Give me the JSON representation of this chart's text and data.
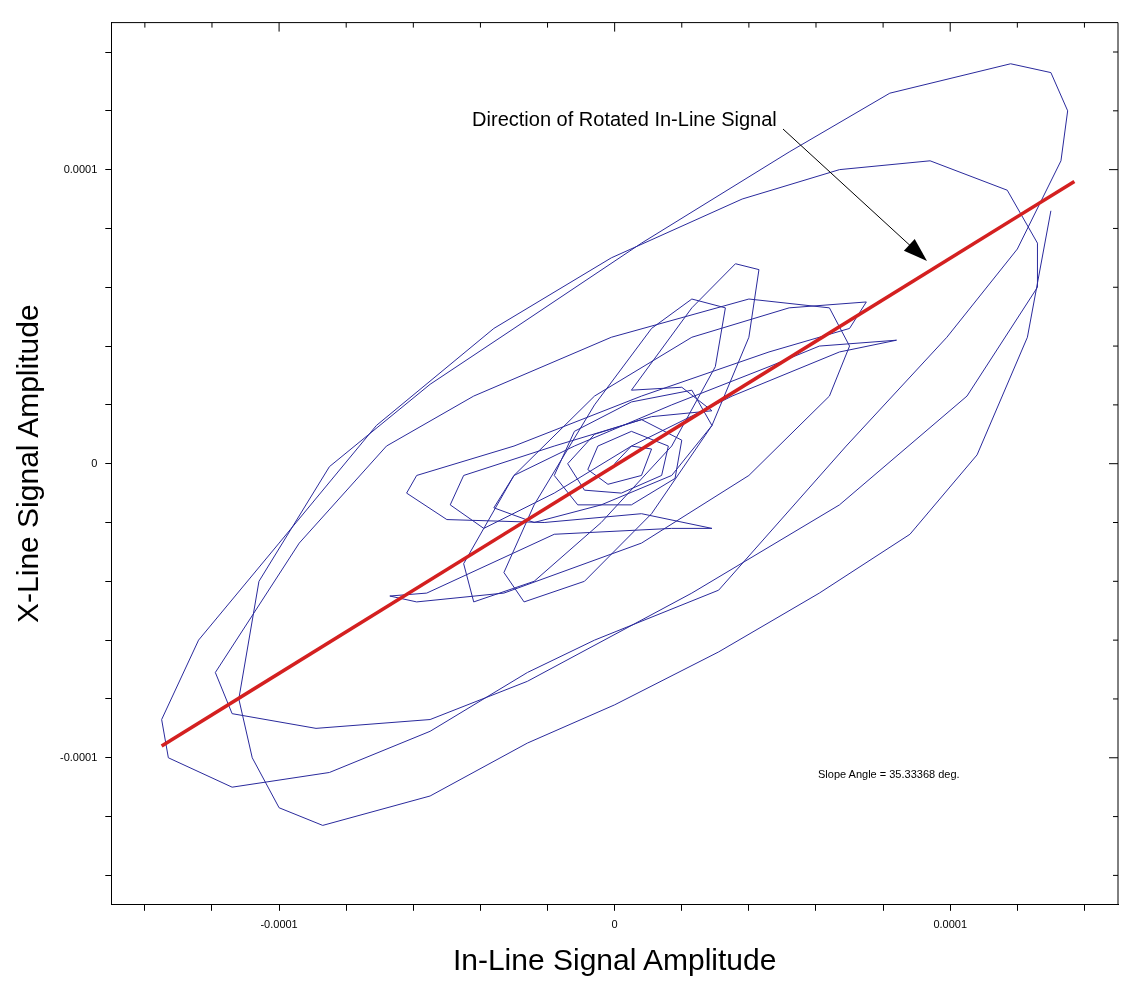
{
  "chart_data": {
    "type": "line",
    "xlabel": "In-Line Signal Amplitude",
    "ylabel": "X-Line Signal Amplitude",
    "xlim": [
      -0.00015,
      0.00015
    ],
    "ylim": [
      -0.00015,
      0.00015
    ],
    "xticks": [
      {
        "value": -0.00014,
        "label": null
      },
      {
        "value": -0.00012,
        "label": null
      },
      -0.0001,
      {
        "value": -8e-05,
        "label": null
      },
      {
        "value": -6e-05,
        "label": null
      },
      {
        "value": -4e-05,
        "label": null
      },
      {
        "value": -2e-05,
        "label": null
      },
      0,
      {
        "value": 2e-05,
        "label": null
      },
      {
        "value": 4e-05,
        "label": null
      },
      {
        "value": 6e-05,
        "label": null
      },
      {
        "value": 8e-05,
        "label": null
      },
      0.0001,
      {
        "value": 0.00012,
        "label": null
      },
      {
        "value": 0.00014,
        "label": null
      }
    ],
    "yticks": [
      {
        "value": -0.00014,
        "label": null
      },
      {
        "value": -0.00012,
        "label": null
      },
      -0.0001,
      {
        "value": -8e-05,
        "label": null
      },
      {
        "value": -6e-05,
        "label": null
      },
      {
        "value": -4e-05,
        "label": null
      },
      {
        "value": -2e-05,
        "label": null
      },
      0,
      {
        "value": 2e-05,
        "label": null
      },
      {
        "value": 4e-05,
        "label": null
      },
      {
        "value": 6e-05,
        "label": null
      },
      {
        "value": 8e-05,
        "label": null
      },
      0.0001,
      {
        "value": 0.00012,
        "label": null
      },
      {
        "value": 0.00014,
        "label": null
      }
    ],
    "grid": false,
    "marker": "none",
    "series": [
      {
        "type": "line",
        "color": "#2a2a9c",
        "x": [
          0,
          5e-06,
          1.1e-05,
          8e-06,
          -2e-06,
          -8e-06,
          -5e-06,
          5e-06,
          1.6e-05,
          1.4e-05,
          2e-06,
          -9e-06,
          -1.4e-05,
          -6e-06,
          8e-06,
          2e-05,
          1.8e-05,
          5e-06,
          -1.1e-05,
          -1.8e-05,
          -1.2e-05,
          5e-06,
          2.3e-05,
          2.9e-05,
          1.7e-05,
          -4e-06,
          -2.4e-05,
          -3.6e-05,
          -3e-05,
          -1.2e-05,
          1.7e-05,
          4.6e-05,
          6.1e-05,
          8.4e-05,
          6.7e-05,
          3.5e-05,
          5e-06,
          -1.8e-05,
          -3.9e-05,
          -4.9e-05,
          -4.5e-05,
          -1.8e-05,
          1.1e-05,
          2.9e-05,
          2e-05,
          5e-06,
          2.3e-05,
          3.6e-05,
          4.3e-05,
          4e-05,
          2.9e-05,
          1.1e-05,
          -9e-06,
          -2.7e-05,
          -3.3e-05,
          -2.4e-05,
          -6e-06,
          1.1e-05,
          2.3e-05,
          3.3e-05,
          3e-05,
          1.7e-05,
          -4e-06,
          -2.4e-05,
          -4.2e-05,
          -4.5e-05,
          -3e-05,
          -6e-06,
          2.3e-05,
          5.2e-05,
          7.5e-05,
          7e-05,
          4.6e-05,
          8e-06,
          -3e-05,
          -5.9e-05,
          -6.2e-05,
          -5e-05,
          -2.1e-05,
          8e-06,
          2.9e-05,
          1.7e-05,
          -1.8e-05,
          -5.6e-05,
          -6.7e-05,
          -5.9e-05,
          -3.3e-05,
          8e-06,
          4e-05,
          6.4e-05,
          7e-05,
          6.4e-05,
          4e-05,
          -1e-06,
          -4.2e-05,
          -6.8e-05,
          -9.4e-05,
          -0.000119,
          -0.000114,
          -8.9e-05,
          -5.5e-05,
          -2.6e-05,
          2.3e-05,
          6.7e-05,
          0.000105,
          0.000126,
          0.000126,
          0.000117,
          9.4e-05,
          6.7e-05,
          3.8e-05,
          -1e-06,
          -3.6e-05,
          -7.1e-05,
          -0.0001,
          -0.000124,
          -0.000135,
          -0.000133,
          -0.000114,
          -8.5e-05,
          -5.5e-05,
          -2.6e-05,
          -6e-06,
          3.1e-05,
          6.9e-05,
          9.9e-05,
          0.00012,
          0.000133,
          0.000135,
          0.00013,
          0.000118,
          8.2e-05,
          5.2e-05,
          8e-06,
          -3e-05,
          -5.5e-05,
          -8.5e-05,
          -0.000106,
          -0.000112,
          -0.000108,
          -0.0001,
          -8.7e-05,
          -5.5e-05,
          -2.6e-05,
          0,
          3.1e-05,
          6.1e-05,
          8.8e-05,
          0.000108,
          0.000123,
          0.00013
        ],
        "values": [
          0,
          6e-06,
          5e-06,
          -4e-06,
          -7e-06,
          -2e-06,
          6e-06,
          1.1e-05,
          6e-06,
          -4e-06,
          -1e-05,
          -9e-06,
          0,
          1e-05,
          1.5e-05,
          8e-06,
          -5e-06,
          -1.4e-05,
          -1.4e-05,
          -4e-06,
          1.1e-05,
          2.1e-05,
          2.5e-05,
          1.3e-05,
          -4e-06,
          -1.4e-05,
          -2e-05,
          -1.5e-05,
          -4e-06,
          6e-06,
          2e-05,
          3.3e-05,
          4e-05,
          4.2e-05,
          3.8e-05,
          2.3e-05,
          6e-06,
          -1e-05,
          -2.2e-05,
          -1.4e-05,
          -4e-06,
          6e-06,
          1.6e-05,
          1.8e-05,
          2.6e-05,
          2.5e-05,
          5.3e-05,
          6.8e-05,
          6.6e-05,
          4.3e-05,
          1.3e-05,
          -1.7e-05,
          -4e-05,
          -4.7e-05,
          -3.7e-05,
          -1.4e-05,
          2e-05,
          4.6e-05,
          5.6e-05,
          5.3e-05,
          3.3e-05,
          6e-06,
          -2e-05,
          -4e-05,
          -4.7e-05,
          -3.4e-05,
          -4e-06,
          2.3e-05,
          4.3e-05,
          5.3e-05,
          5.5e-05,
          4.6e-05,
          3.8e-05,
          2.3e-05,
          6e-06,
          -4e-06,
          -1e-05,
          -1.9e-05,
          -2e-05,
          -1.7e-05,
          -2.2e-05,
          -2.2e-05,
          -2.4e-05,
          -4.4e-05,
          -4.5e-05,
          -4.7e-05,
          -4.4e-05,
          -2.7e-05,
          -4e-06,
          2.3e-05,
          4e-05,
          5.3e-05,
          5.6e-05,
          4.3e-05,
          2.3e-05,
          6e-06,
          -2.7e-05,
          -7.1e-05,
          -8.5e-05,
          -9e-05,
          -8.7e-05,
          -7.4e-05,
          -4.4e-05,
          -1.4e-05,
          2.3e-05,
          6e-05,
          7.5e-05,
          9.3e-05,
          0.000103,
          0.0001,
          9e-05,
          7e-05,
          4.6e-05,
          1.3e-05,
          -2.7e-05,
          -6e-05,
          -8.7e-05,
          -0.0001,
          -0.00011,
          -0.000105,
          -9.1e-05,
          -7.1e-05,
          -6e-05,
          -4.3e-05,
          6e-06,
          4.3e-05,
          7.3e-05,
          0.000103,
          0.00012,
          0.000133,
          0.000136,
          0.000126,
          0.000106,
          7.5e-05,
          4.6e-05,
          2.7e-05,
          -1e-06,
          -4e-05,
          -8e-05,
          -0.0001,
          -0.000117,
          -0.000123,
          -0.000113,
          -9.5e-05,
          -8.2e-05,
          -6.4e-05,
          -4.4e-05,
          -2.4e-05,
          3e-06,
          4.3e-05,
          8.6e-05
        ]
      },
      {
        "type": "line",
        "color": "#d42020",
        "x": [
          -0.000135,
          0.000137
        ],
        "values": [
          -9.6e-05,
          9.6e-05
        ]
      }
    ],
    "annotations": [
      "Direction of Rotated In-Line Signal",
      "Slope Angle = 35.33368 deg."
    ]
  }
}
